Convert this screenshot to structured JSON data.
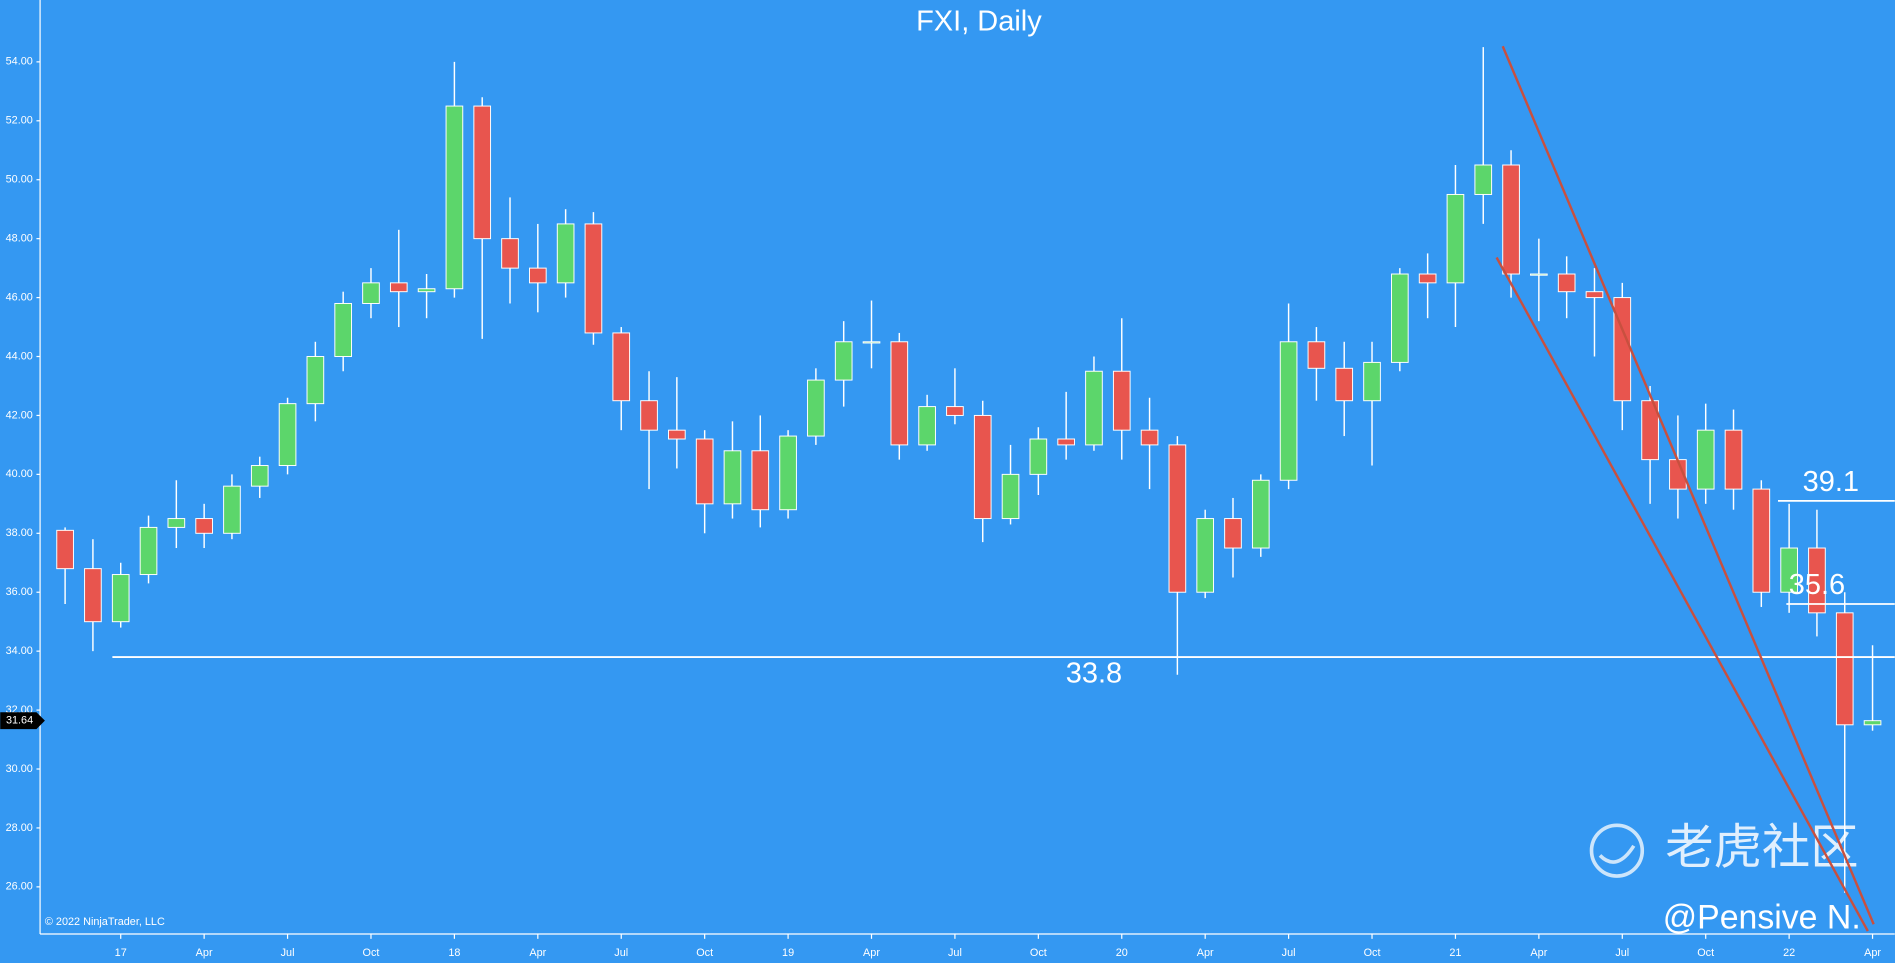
{
  "chart_data": {
    "type": "candlestick",
    "title": "FXI, Daily",
    "copyright": "© 2022 NinjaTrader, LLC",
    "watermark": "老虎社区",
    "author": "@Pensive N.",
    "last_price": 31.64,
    "up_color": "#5cd66b",
    "down_color": "#e8554e",
    "x": [
      -2,
      -1,
      0,
      1,
      2,
      3,
      4,
      5,
      6,
      7,
      8,
      9,
      10,
      11,
      12,
      13,
      14,
      15,
      16,
      17,
      18,
      19,
      20,
      21,
      22,
      23,
      24,
      25,
      26,
      27,
      28,
      29,
      30,
      31,
      32,
      33,
      34,
      35,
      36,
      37,
      38,
      39,
      40,
      41,
      42,
      43,
      44,
      45,
      46,
      47,
      48,
      49,
      50,
      51,
      52,
      53,
      54,
      55,
      56,
      57,
      58,
      59,
      60,
      61,
      62,
      63
    ],
    "open": [
      38.1,
      36.8,
      35.0,
      36.6,
      38.2,
      38.5,
      38.0,
      39.6,
      40.3,
      42.4,
      44.0,
      45.8,
      46.5,
      46.2,
      46.3,
      52.5,
      48.0,
      47.0,
      46.5,
      48.5,
      44.8,
      42.5,
      41.5,
      41.2,
      39.0,
      40.8,
      38.8,
      41.3,
      43.2,
      44.5,
      44.5,
      41.0,
      42.3,
      42.0,
      38.5,
      40.0,
      41.2,
      41.0,
      43.5,
      41.5,
      41.0,
      36.0,
      38.5,
      37.5,
      39.8,
      44.5,
      43.6,
      42.5,
      43.8,
      46.8,
      46.5,
      49.5,
      50.5,
      46.8,
      46.8,
      46.2,
      46.0,
      42.5,
      40.5,
      39.5,
      41.5,
      39.5,
      36.0,
      37.5,
      35.3,
      31.5
    ],
    "high": [
      38.2,
      37.8,
      37.0,
      38.6,
      39.8,
      39.0,
      40.0,
      40.6,
      42.6,
      44.5,
      46.2,
      47.0,
      48.3,
      46.8,
      54.0,
      52.8,
      49.4,
      48.5,
      49.0,
      48.9,
      45.0,
      43.5,
      43.3,
      41.5,
      41.8,
      42.0,
      41.5,
      43.6,
      45.2,
      45.9,
      44.8,
      42.7,
      43.6,
      42.5,
      41.0,
      41.6,
      42.8,
      44.0,
      45.3,
      42.6,
      41.3,
      38.8,
      39.2,
      40.0,
      45.8,
      45.0,
      44.5,
      44.5,
      47.0,
      47.5,
      50.5,
      54.5,
      51.0,
      48.0,
      47.4,
      47.0,
      46.5,
      43.0,
      42.0,
      42.4,
      42.2,
      39.8,
      39.0,
      38.8,
      36.0,
      34.2
    ],
    "low": [
      35.6,
      34.0,
      34.8,
      36.3,
      37.5,
      37.5,
      37.8,
      39.2,
      40.0,
      41.8,
      43.5,
      45.3,
      45.0,
      45.3,
      46.0,
      44.6,
      45.8,
      45.5,
      46.0,
      44.4,
      41.5,
      39.5,
      40.2,
      38.0,
      38.5,
      38.2,
      38.5,
      41.0,
      42.3,
      43.6,
      40.5,
      40.8,
      41.7,
      37.7,
      38.3,
      39.3,
      40.5,
      40.8,
      40.5,
      39.5,
      33.2,
      35.8,
      36.5,
      37.2,
      39.5,
      42.5,
      41.3,
      40.3,
      43.5,
      45.3,
      45.0,
      48.5,
      46.0,
      45.2,
      45.3,
      44.0,
      41.5,
      39.0,
      38.5,
      39.0,
      38.8,
      35.5,
      35.3,
      34.5,
      25.8,
      31.3
    ],
    "close": [
      36.8,
      35.0,
      36.6,
      38.2,
      38.5,
      38.0,
      39.6,
      40.3,
      42.4,
      44.0,
      45.8,
      46.5,
      46.2,
      46.3,
      52.5,
      48.0,
      47.0,
      46.5,
      48.5,
      44.8,
      42.5,
      41.5,
      41.2,
      39.0,
      40.8,
      38.8,
      41.3,
      43.2,
      44.5,
      44.5,
      41.0,
      42.3,
      42.0,
      38.5,
      40.0,
      41.2,
      41.0,
      43.5,
      41.5,
      41.0,
      36.0,
      38.5,
      37.5,
      39.8,
      44.5,
      43.6,
      42.5,
      43.8,
      46.8,
      46.5,
      49.5,
      50.5,
      46.8,
      46.8,
      46.2,
      46.0,
      42.5,
      40.5,
      39.5,
      41.5,
      39.5,
      36.0,
      37.5,
      35.3,
      31.5,
      31.64
    ],
    "xlim": [
      -2.9,
      63.8
    ],
    "ylim": [
      24.4,
      56.1
    ],
    "xticks": [
      {
        "value": 0,
        "label": "17"
      },
      {
        "value": 3,
        "label": "Apr"
      },
      {
        "value": 6,
        "label": "Jul"
      },
      {
        "value": 9,
        "label": "Oct"
      },
      {
        "value": 12,
        "label": "18"
      },
      {
        "value": 15,
        "label": "Apr"
      },
      {
        "value": 18,
        "label": "Jul"
      },
      {
        "value": 21,
        "label": "Oct"
      },
      {
        "value": 24,
        "label": "19"
      },
      {
        "value": 27,
        "label": "Apr"
      },
      {
        "value": 30,
        "label": "Jul"
      },
      {
        "value": 33,
        "label": "Oct"
      },
      {
        "value": 36,
        "label": "20"
      },
      {
        "value": 39,
        "label": "Apr"
      },
      {
        "value": 42,
        "label": "Jul"
      },
      {
        "value": 45,
        "label": "Oct"
      },
      {
        "value": 48,
        "label": "21"
      },
      {
        "value": 51,
        "label": "Apr"
      },
      {
        "value": 54,
        "label": "Jul"
      },
      {
        "value": 57,
        "label": "Oct"
      },
      {
        "value": 60,
        "label": "22"
      },
      {
        "value": 63,
        "label": "Apr"
      }
    ],
    "yticks": [
      {
        "value": 26,
        "label": "26.00"
      },
      {
        "value": 28,
        "label": "28.00"
      },
      {
        "value": 30,
        "label": "30.00"
      },
      {
        "value": 32,
        "label": "32.00"
      },
      {
        "value": 34,
        "label": "34.00"
      },
      {
        "value": 36,
        "label": "36.00"
      },
      {
        "value": 38,
        "label": "38.00"
      },
      {
        "value": 40,
        "label": "40.00"
      },
      {
        "value": 42,
        "label": "42.00"
      },
      {
        "value": 44,
        "label": "44.00"
      },
      {
        "value": 46,
        "label": "46.00"
      },
      {
        "value": 48,
        "label": "48.00"
      },
      {
        "value": 50,
        "label": "50.00"
      },
      {
        "value": 52,
        "label": "52.00"
      },
      {
        "value": 54,
        "label": "54.00"
      }
    ],
    "hlines": [
      {
        "value": 33.8,
        "from": -0.3
      },
      {
        "value": 39.1,
        "from": 59.6
      },
      {
        "value": 35.6,
        "from": 59.9
      }
    ],
    "trendlines": [
      {
        "color": "#c8503f",
        "points": [
          [
            49.7,
            54.53
          ],
          [
            63.04,
            24.73
          ]
        ]
      },
      {
        "color": "#c8503f",
        "points": [
          [
            49.48,
            47.36
          ],
          [
            62.83,
            24.5
          ]
        ]
      }
    ]
  }
}
